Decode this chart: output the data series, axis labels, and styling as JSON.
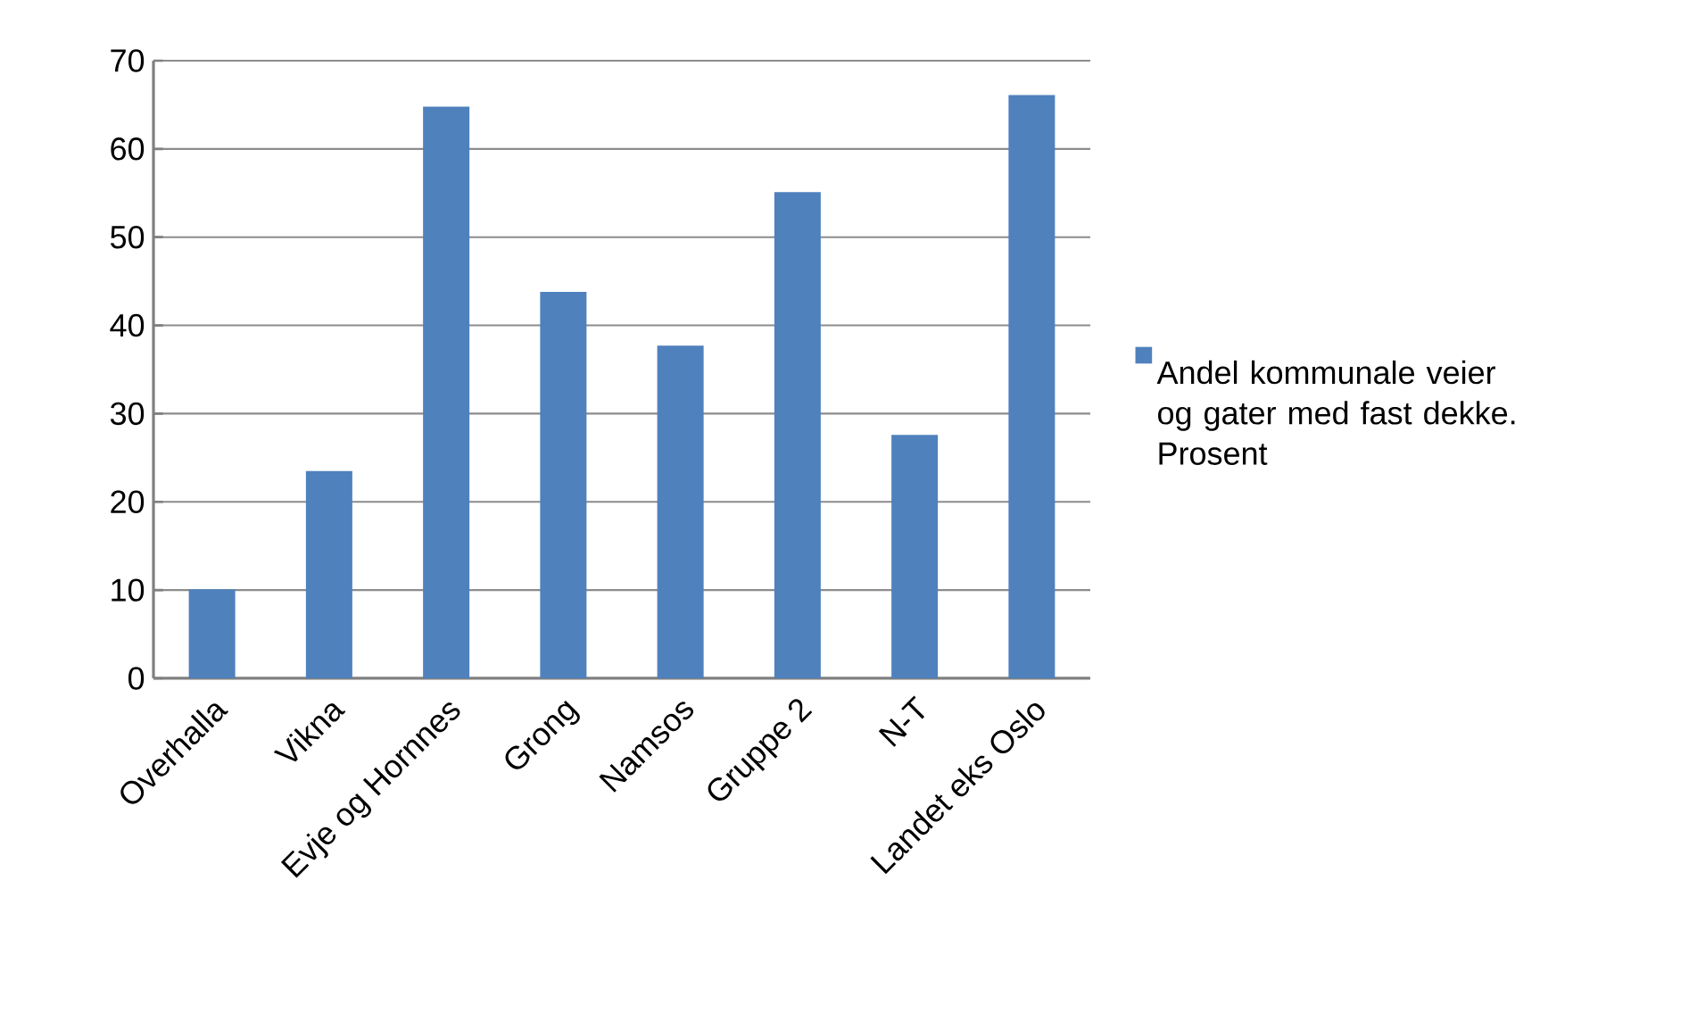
{
  "chart_data": {
    "type": "bar",
    "categories": [
      "Overhalla",
      "Vikna",
      "Evje og Hornnes",
      "Grong",
      "Namsos",
      "Gruppe 2",
      "N-T",
      "Landet eks Oslo"
    ],
    "series": [
      {
        "name": "Andel kommunale veier og gater med fast dekke. Prosent",
        "color": "#4f81bd",
        "values": [
          10.1,
          23.5,
          64.8,
          43.8,
          37.7,
          55.1,
          27.6,
          66.1
        ]
      }
    ],
    "ylim": [
      0,
      70
    ],
    "yticks": [
      0,
      10,
      20,
      30,
      40,
      50,
      60,
      70
    ],
    "grid": "y",
    "legend": "right"
  }
}
